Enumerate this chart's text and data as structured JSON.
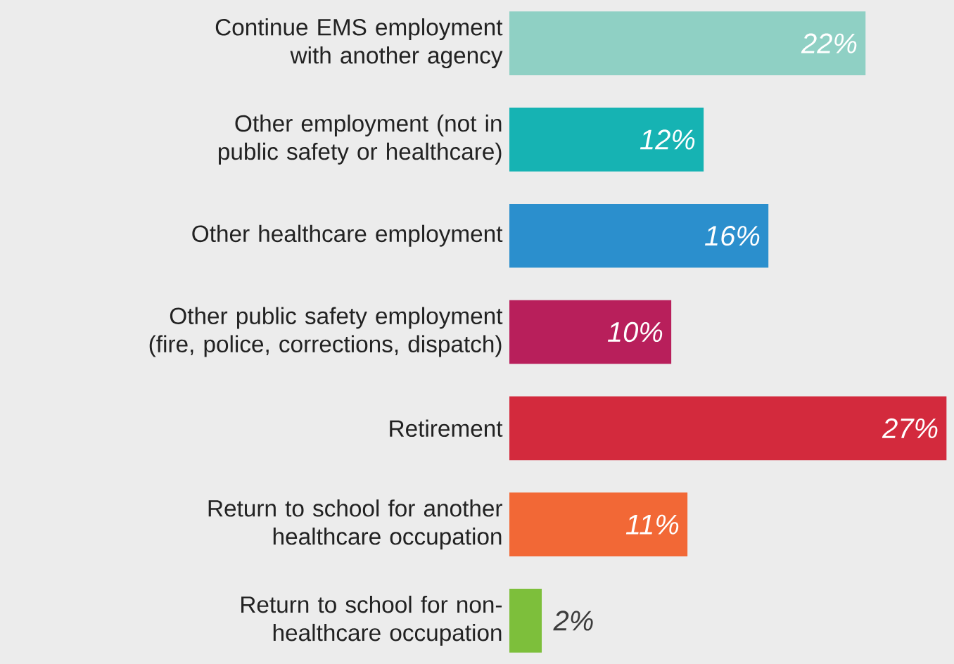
{
  "chart_data": {
    "type": "bar",
    "orientation": "horizontal",
    "data_labels": true,
    "categories": [
      "Continue EMS employment with another agency",
      "Other employment (not in public safety or healthcare)",
      "Other healthcare employment",
      "Other public safety employment (fire, police, corrections, dispatch)",
      "Retirement",
      "Return to school for another healthcare occupation",
      "Return to school for non-healthcare occupation"
    ],
    "values": [
      22,
      12,
      16,
      10,
      27,
      11,
      2
    ],
    "value_labels": [
      "22%",
      "12%",
      "16%",
      "10%",
      "27%",
      "11%",
      "2%"
    ],
    "colors": [
      "#8fd0c4",
      "#16b3b3",
      "#2b8fcd",
      "#b81f5b",
      "#d32a3d",
      "#f26836",
      "#7dbf3b"
    ]
  }
}
